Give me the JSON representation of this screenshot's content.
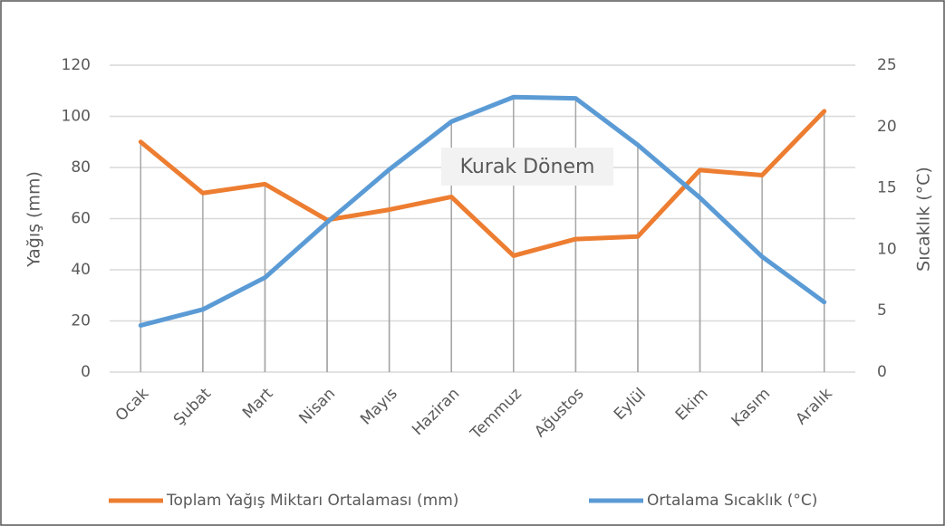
{
  "chart_data": {
    "type": "line",
    "categories": [
      "Ocak",
      "Şubat",
      "Mart",
      "Nisan",
      "Mayıs",
      "Haziran",
      "Temmuz",
      "Ağustos",
      "Eylül",
      "Ekim",
      "Kasım",
      "Aralık"
    ],
    "series": [
      {
        "name": "Toplam Yağış Miktarı Ortalaması (mm)",
        "color": "#ed7d31",
        "values": [
          90,
          70,
          73.5,
          59.5,
          63.5,
          68.5,
          45.5,
          52,
          53,
          79,
          77,
          102
        ]
      },
      {
        "name": "Ortalama Sıcaklık (°C)",
        "color": "#5b9bd5",
        "axis": "y2",
        "values": [
          3.8,
          5.1,
          7.7,
          12.2,
          16.5,
          20.4,
          22.4,
          22.3,
          18.5,
          14.2,
          9.4,
          5.7
        ]
      }
    ],
    "ylabel": "Yağış (mm)",
    "y2label": "Sıcaklık (°C)",
    "ylim": [
      0,
      120
    ],
    "yticks": [
      0,
      20,
      40,
      60,
      80,
      100,
      120
    ],
    "y2lim": [
      0,
      25
    ],
    "y2ticks": [
      0,
      5,
      10,
      15,
      20,
      25
    ],
    "annotation": "Kurak Dönem",
    "grid": true,
    "legend": "bottom"
  }
}
